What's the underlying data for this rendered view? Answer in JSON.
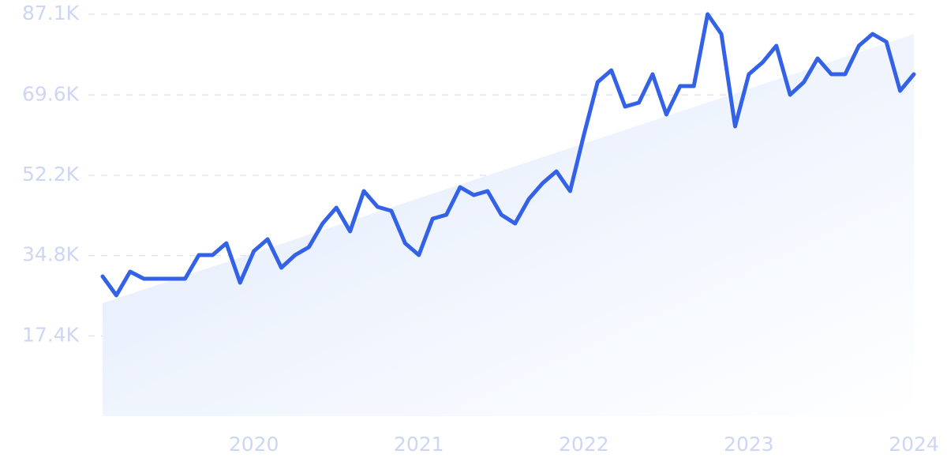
{
  "chart_data": {
    "type": "line",
    "categories": [
      null,
      null,
      null,
      null,
      null,
      null,
      null,
      null,
      null,
      null,
      null,
      "2020",
      null,
      null,
      null,
      null,
      null,
      null,
      null,
      null,
      null,
      null,
      null,
      "2021",
      null,
      null,
      null,
      null,
      null,
      null,
      null,
      null,
      null,
      null,
      null,
      "2022",
      null,
      null,
      null,
      null,
      null,
      null,
      null,
      null,
      null,
      null,
      null,
      "2023",
      null,
      null,
      null,
      null,
      null,
      null,
      null,
      null,
      null,
      null,
      null,
      "2024"
    ],
    "series": [
      {
        "type": "area",
        "color": "#e1ebfb",
        "values": [
          24500,
          25488,
          26476,
          27464,
          28452,
          29440,
          30428,
          31416,
          32404,
          33392,
          34380,
          35368,
          36356,
          37344,
          38332,
          39320,
          40308,
          41296,
          42284,
          43272,
          44260,
          45248,
          46236,
          47224,
          48212,
          49200,
          50188,
          51176,
          52164,
          53152,
          54140,
          55128,
          56116,
          57104,
          58092,
          59080,
          60068,
          61056,
          62044,
          63032,
          64020,
          65008,
          65996,
          66984,
          67972,
          68960,
          69948,
          70936,
          71924,
          72912,
          73900,
          74888,
          75876,
          76864,
          77852,
          78840,
          79828,
          80816,
          81804,
          82792
        ]
      },
      {
        "type": "line",
        "color": "#3362e6",
        "values": [
          30290,
          26180,
          31310,
          29770,
          29770,
          29770,
          29770,
          34910,
          34910,
          37470,
          28920,
          35760,
          38330,
          32170,
          34910,
          36620,
          41750,
          45170,
          40040,
          48770,
          45350,
          44490,
          37470,
          34910,
          42780,
          43630,
          49620,
          47910,
          48770,
          43630,
          41750,
          47060,
          50480,
          53050,
          48770,
          60920,
          72380,
          74950,
          67080,
          67930,
          74090,
          65370,
          71530,
          71530,
          87100,
          82820,
          62800,
          74090,
          76660,
          80250,
          69640,
          72380,
          77510,
          74090,
          74090,
          80250,
          82820,
          81110,
          70500,
          74090
        ]
      }
    ],
    "ylim": [
      0,
      87100
    ],
    "yticks": [
      {
        "value": 17400,
        "label": "17.4K"
      },
      {
        "value": 34800,
        "label": "34.8K"
      },
      {
        "value": 52200,
        "label": "52.2K"
      },
      {
        "value": 69600,
        "label": "69.6K"
      },
      {
        "value": 87100,
        "label": "87.1K"
      }
    ],
    "grid": true
  }
}
